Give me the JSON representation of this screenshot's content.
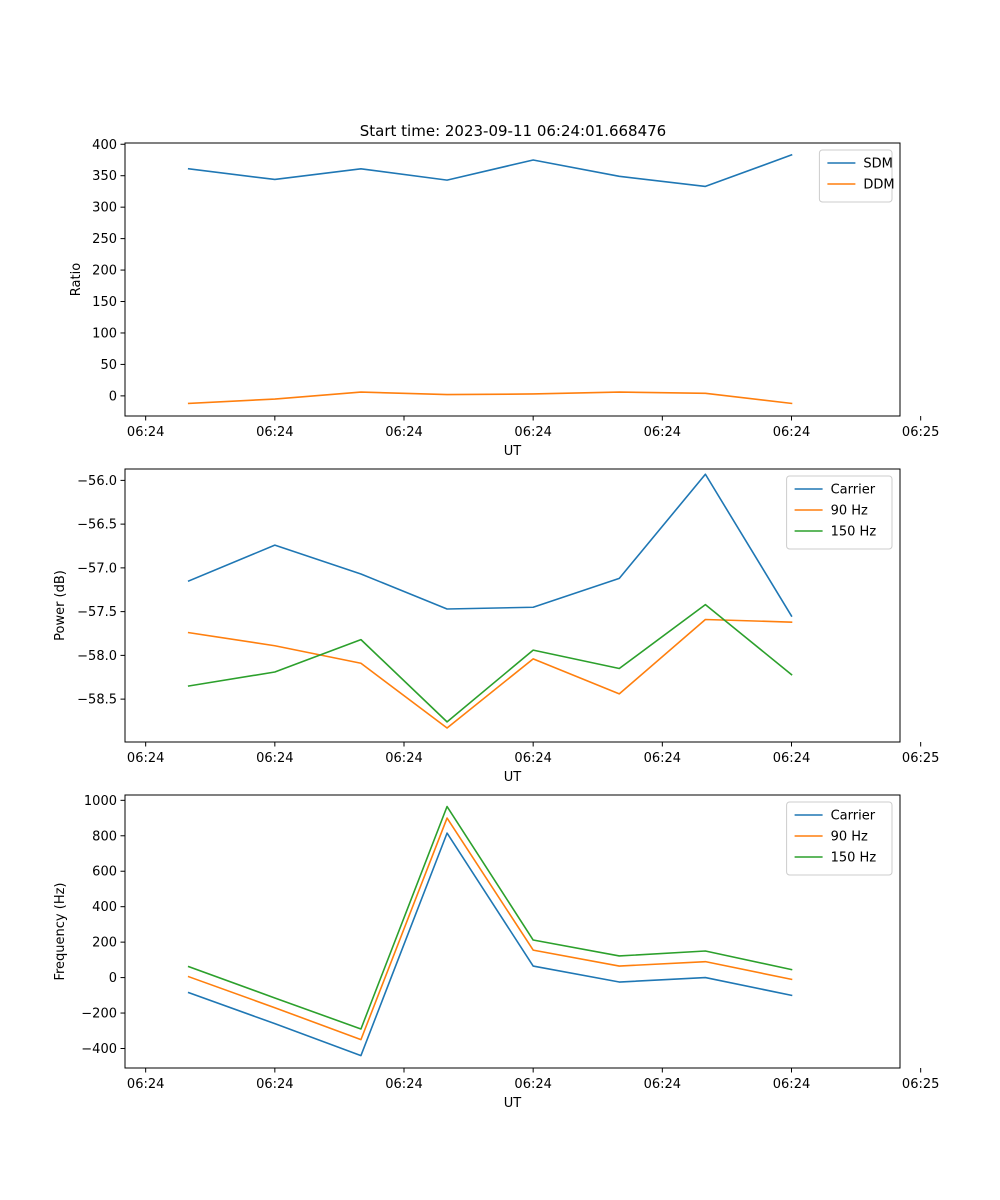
{
  "figure": {
    "title": "Start time: 2023-09-11 06:24:01.668476"
  },
  "chart_data": [
    {
      "type": "line",
      "title": "Start time: 2023-09-11 06:24:01.668476",
      "xlabel": "UT",
      "ylabel": "Ratio",
      "x_tick_labels": [
        "06:24",
        "06:24",
        "06:24",
        "06:24",
        "06:24",
        "06:24",
        "06:25"
      ],
      "x": [
        1,
        2,
        3,
        4,
        5,
        6,
        7,
        8
      ],
      "xlim": [
        0.26,
        9.26
      ],
      "ylim": [
        -32,
        402
      ],
      "yticks": [
        0,
        50,
        100,
        150,
        200,
        250,
        300,
        350,
        400
      ],
      "legend_loc": "upper right",
      "series": [
        {
          "name": "SDM",
          "color": "#1f77b4",
          "values": [
            361,
            344,
            361,
            343,
            375,
            349,
            333,
            383
          ]
        },
        {
          "name": "DDM",
          "color": "#ff7f0e",
          "values": [
            -12,
            -5,
            6,
            2,
            3,
            6,
            4,
            -12
          ]
        }
      ]
    },
    {
      "type": "line",
      "title": "",
      "xlabel": "UT",
      "ylabel": "Power (dB)",
      "x_tick_labels": [
        "06:24",
        "06:24",
        "06:24",
        "06:24",
        "06:24",
        "06:24",
        "06:25"
      ],
      "x": [
        1,
        2,
        3,
        4,
        5,
        6,
        7,
        8
      ],
      "xlim": [
        0.26,
        9.26
      ],
      "ylim": [
        -58.99,
        -55.87
      ],
      "yticks": [
        -58.5,
        -58.0,
        -57.5,
        -57.0,
        -56.5,
        -56.0
      ],
      "ytick_labels": [
        "−58.5",
        "−58.0",
        "−57.5",
        "−57.0",
        "−56.5",
        "−56.0"
      ],
      "legend_loc": "upper right",
      "series": [
        {
          "name": "Carrier",
          "color": "#1f77b4",
          "values": [
            -57.15,
            -56.74,
            -57.07,
            -57.47,
            -57.45,
            -57.12,
            -55.93,
            -57.55
          ]
        },
        {
          "name": "90 Hz",
          "color": "#ff7f0e",
          "values": [
            -57.74,
            -57.89,
            -58.09,
            -58.83,
            -58.04,
            -58.44,
            -57.59,
            -57.62
          ]
        },
        {
          "name": "150 Hz",
          "color": "#2ca02c",
          "values": [
            -58.35,
            -58.19,
            -57.82,
            -58.76,
            -57.94,
            -58.15,
            -57.42,
            -58.22
          ]
        }
      ]
    },
    {
      "type": "line",
      "title": "",
      "xlabel": "UT",
      "ylabel": "Frequency (Hz)",
      "x_tick_labels": [
        "06:24",
        "06:24",
        "06:24",
        "06:24",
        "06:24",
        "06:24",
        "06:25"
      ],
      "x": [
        1,
        2,
        3,
        4,
        5,
        6,
        7,
        8
      ],
      "xlim": [
        0.26,
        9.26
      ],
      "ylim": [
        -510,
        1030
      ],
      "yticks": [
        -400,
        -200,
        0,
        200,
        400,
        600,
        800,
        1000
      ],
      "ytick_labels": [
        "−400",
        "−200",
        "0",
        "200",
        "400",
        "600",
        "800",
        "1000"
      ],
      "legend_loc": "upper right",
      "series": [
        {
          "name": "Carrier",
          "color": "#1f77b4",
          "values": [
            -85,
            -260,
            -440,
            815,
            65,
            -25,
            0,
            -100
          ]
        },
        {
          "name": "90 Hz",
          "color": "#ff7f0e",
          "values": [
            5,
            -170,
            -350,
            900,
            155,
            65,
            90,
            -10
          ]
        },
        {
          "name": "150 Hz",
          "color": "#2ca02c",
          "values": [
            62,
            -115,
            -290,
            965,
            212,
            122,
            150,
            45
          ]
        }
      ]
    }
  ]
}
